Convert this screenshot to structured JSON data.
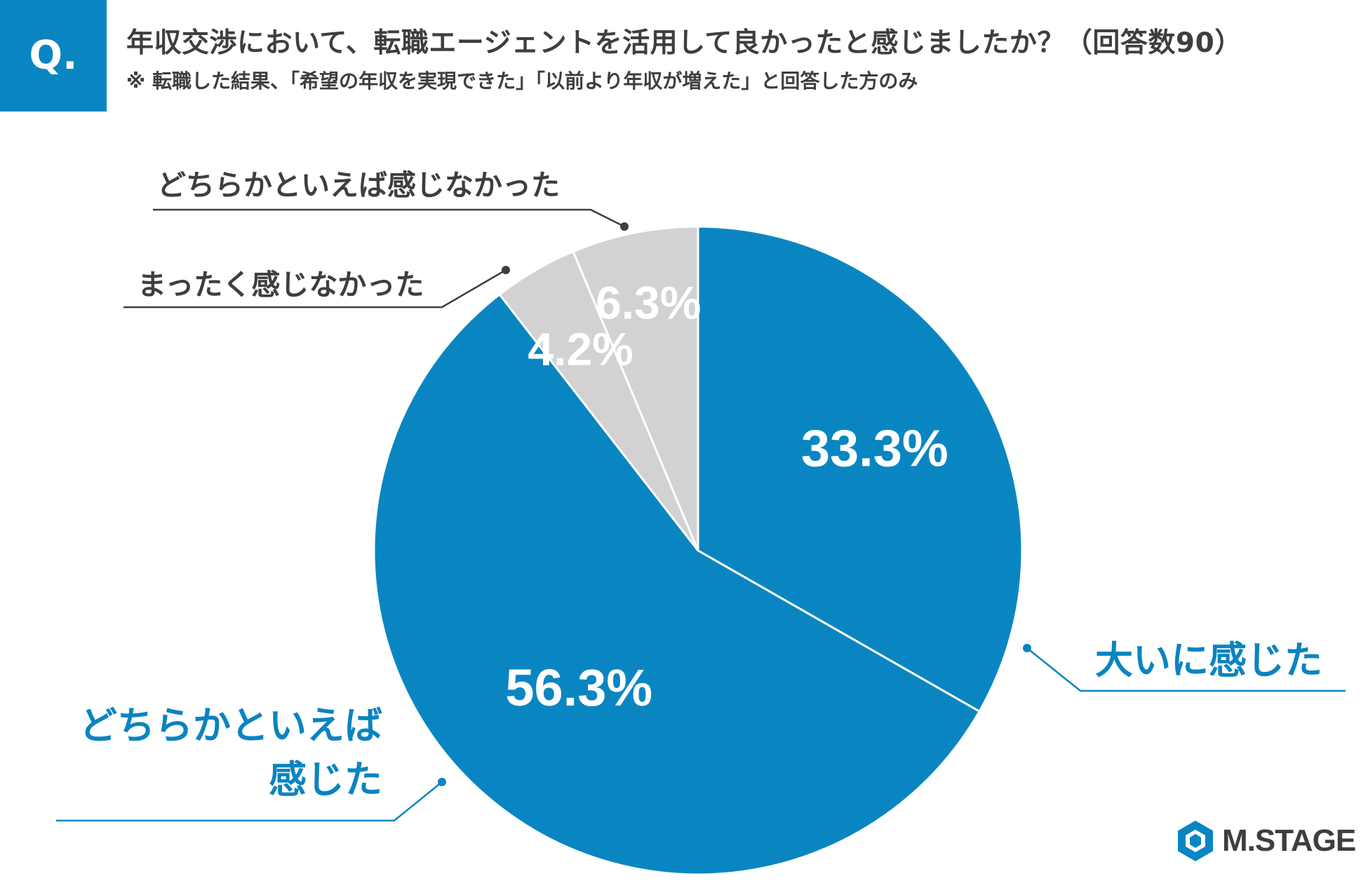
{
  "header": {
    "badge": "Q.",
    "title": "年収交渉において、転職エージェントを活用して良かったと感じましたか？（回答数90）",
    "note": "※ 転職した結果、「希望の年収を実現できた」「以前より年収が増えた」と回答した方のみ"
  },
  "chart_data": {
    "type": "pie",
    "title": "年収交渉において、転職エージェントを活用して良かったと感じましたか？（回答数90）",
    "start": "12 o'clock, clockwise",
    "slices": [
      {
        "label": "大いに感じた",
        "value": 33.3,
        "value_label": "33.3%",
        "color": "#0986c1"
      },
      {
        "label": "どちらかといえば感じた",
        "label_lines": [
          "どちらかといえば",
          "感じた"
        ],
        "value": 56.3,
        "value_label": "56.3%",
        "color": "#0986c1"
      },
      {
        "label": "まったく感じなかった",
        "value": 4.2,
        "value_label": "4.2%",
        "color": "#d2d2d2"
      },
      {
        "label": "どちらかといえば感じなかった",
        "value": 6.3,
        "value_label": "6.3%",
        "color": "#d2d2d2"
      }
    ],
    "colors": {
      "accent_blue": "#0986c1",
      "gray": "#d2d2d2",
      "label_blue": "#0a84c0",
      "label_gray": "#3e3e40"
    }
  },
  "logo": {
    "text": "M.STAGE",
    "icon": "hexagon-logo-icon"
  }
}
